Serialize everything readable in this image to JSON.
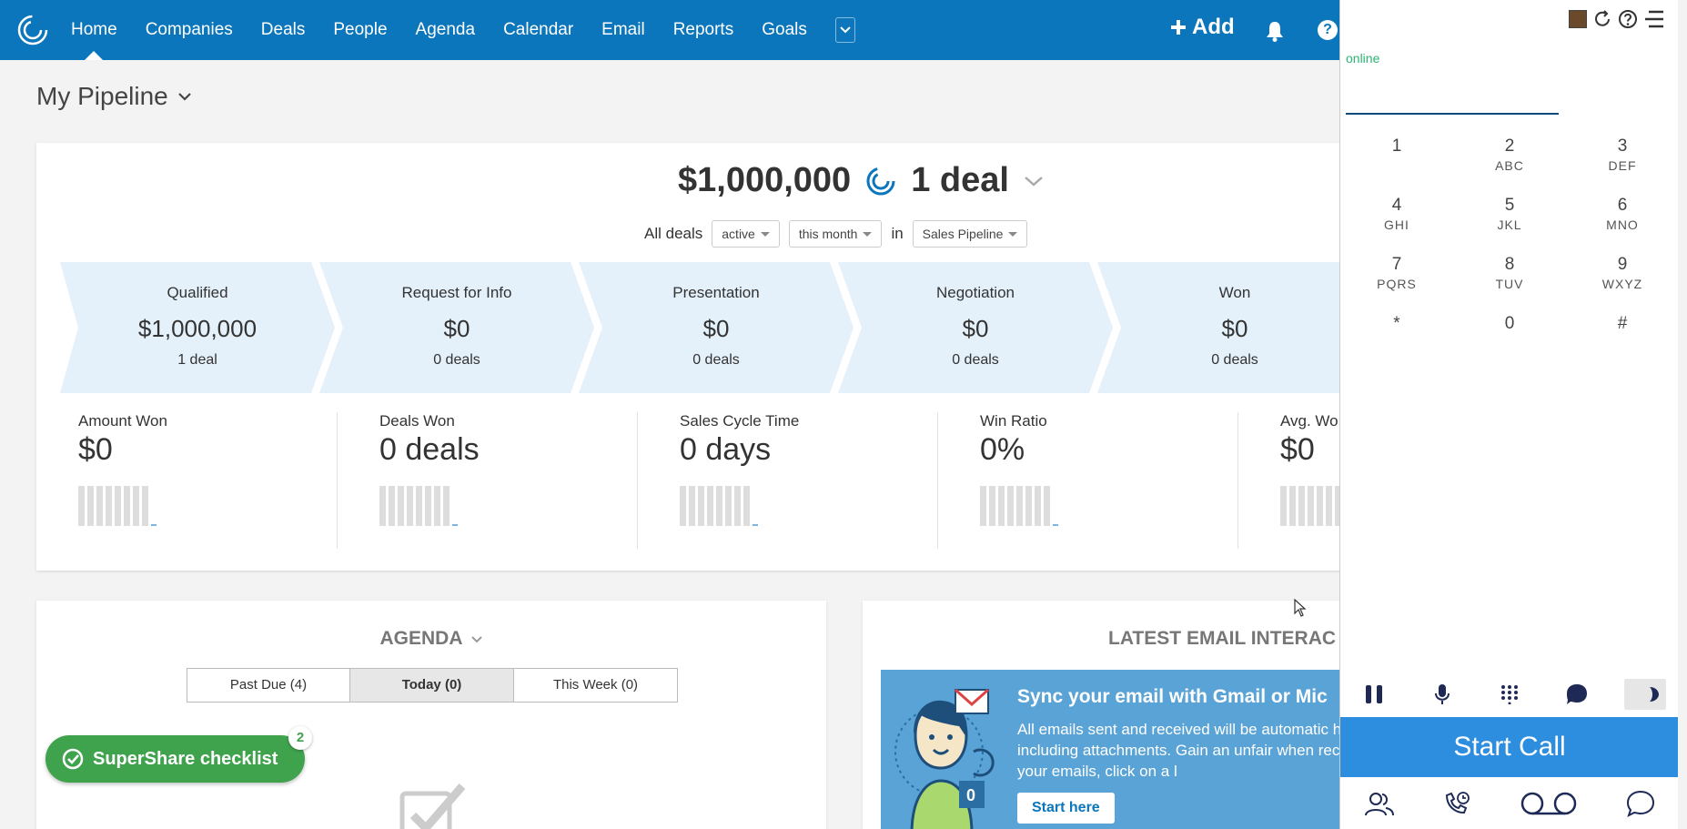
{
  "nav": {
    "items": [
      {
        "label": "Home",
        "active": true
      },
      {
        "label": "Companies"
      },
      {
        "label": "Deals"
      },
      {
        "label": "People"
      },
      {
        "label": "Agenda"
      },
      {
        "label": "Calendar"
      },
      {
        "label": "Email"
      },
      {
        "label": "Reports"
      },
      {
        "label": "Goals"
      }
    ],
    "add_label": "Add"
  },
  "page": {
    "title": "My Pipeline"
  },
  "summary": {
    "amount": "$1,000,000",
    "deals": "1 deal"
  },
  "filters": {
    "prefix": "All deals",
    "status": "active",
    "period": "this month",
    "in_label": "in",
    "pipeline": "Sales Pipeline"
  },
  "stages": [
    {
      "name": "Qualified",
      "amount": "$1,000,000",
      "count": "1 deal"
    },
    {
      "name": "Request for Info",
      "amount": "$0",
      "count": "0 deals"
    },
    {
      "name": "Presentation",
      "amount": "$0",
      "count": "0 deals"
    },
    {
      "name": "Negotiation",
      "amount": "$0",
      "count": "0 deals"
    },
    {
      "name": "Won",
      "amount": "$0",
      "count": "0 deals"
    }
  ],
  "metrics": [
    {
      "label": "Amount Won",
      "value": "$0"
    },
    {
      "label": "Deals Won",
      "value": "0 deals"
    },
    {
      "label": "Sales Cycle Time",
      "value": "0 days"
    },
    {
      "label": "Win Ratio",
      "value": "0%"
    },
    {
      "label": "Avg. Wo",
      "value": "$0"
    }
  ],
  "agenda": {
    "title": "AGENDA",
    "tabs": [
      "Past Due (4)",
      "Today (0)",
      "This Week (0)"
    ]
  },
  "email": {
    "title": "LATEST EMAIL INTERAC",
    "banner_title": "Sync your email with Gmail or Mic",
    "banner_text": "All emails sent and received will be automatic history, including attachments. Gain an unfair when recipients read your emails, click on a l",
    "button": "Start here"
  },
  "supershare": {
    "label": "SuperShare checklist",
    "badge": "2"
  },
  "dialer": {
    "status": "online",
    "keys": [
      {
        "d": "1",
        "l": ""
      },
      {
        "d": "2",
        "l": "ABC"
      },
      {
        "d": "3",
        "l": "DEF"
      },
      {
        "d": "4",
        "l": "GHI"
      },
      {
        "d": "5",
        "l": "JKL"
      },
      {
        "d": "6",
        "l": "MNO"
      },
      {
        "d": "7",
        "l": "PQRS"
      },
      {
        "d": "8",
        "l": "TUV"
      },
      {
        "d": "9",
        "l": "WXYZ"
      },
      {
        "d": "*",
        "l": ""
      },
      {
        "d": "0",
        "l": ""
      },
      {
        "d": "#",
        "l": ""
      }
    ],
    "start_call": "Start Call"
  },
  "colors": {
    "nav": "#0b76bb",
    "stage": "#e4f0fa",
    "supershare": "#3fa34d",
    "call": "#2d8ee0",
    "online": "#2bb673"
  }
}
